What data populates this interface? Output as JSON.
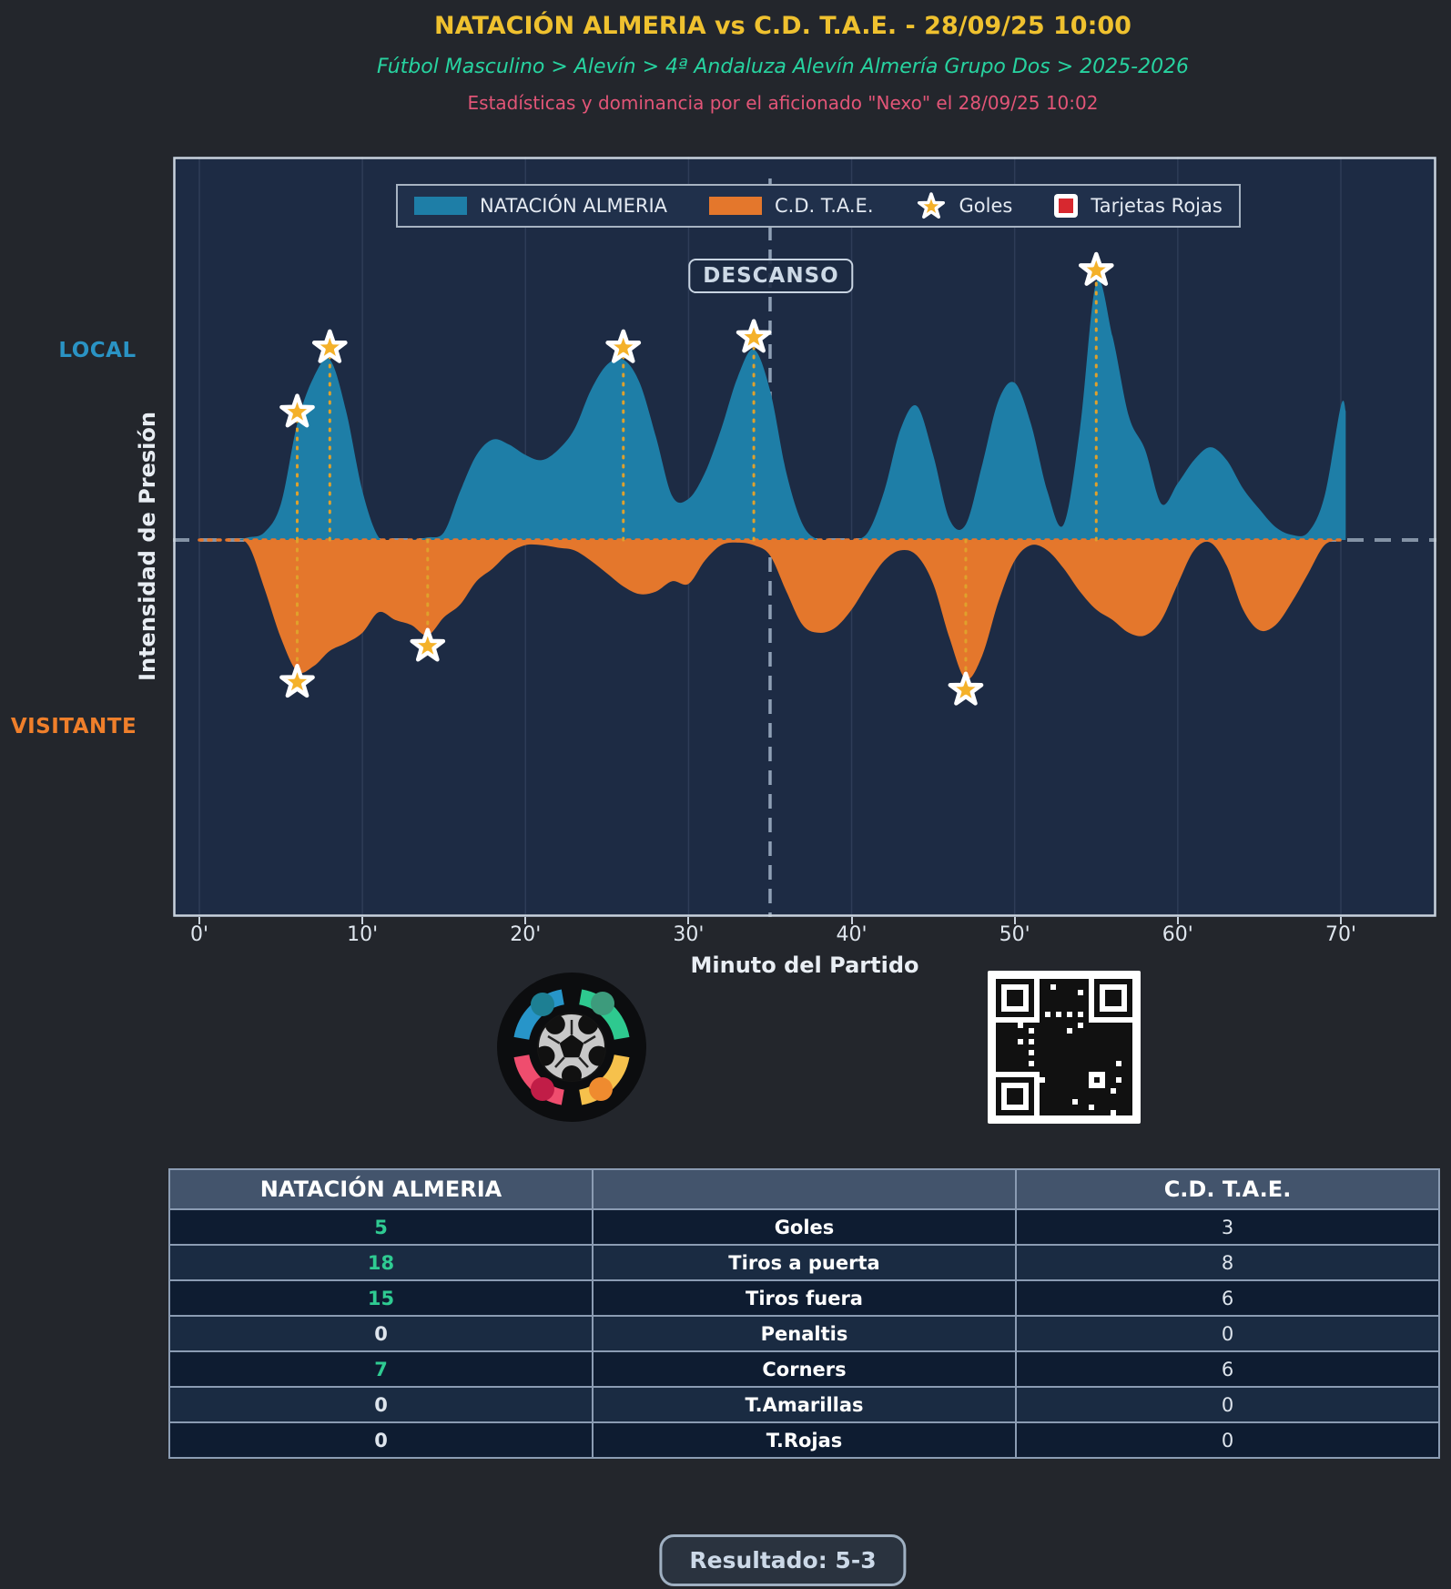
{
  "header": {
    "title": "NATACIÓN ALMERIA vs C.D. T.A.E. - 28/09/25 10:00",
    "breadcrumb": "Fútbol Masculino > Alevín > 4ª Andaluza Alevín Almería Grupo Dos > 2025-2026",
    "byline": "Estadísticas y dominancia por el aficionado \"Nexo\" el 28/09/25 10:02"
  },
  "colors": {
    "home_fill": "#1e7ea7",
    "away_fill": "#e4772c",
    "star_fill": "#f4b129",
    "goal_line": "#dfa12c",
    "baseline_gray": "#8493a6",
    "baseline_orange": "#e5762b",
    "halftime_line": "#8fa0b5",
    "grid": "rgba(170,193,228,0.12)",
    "frame": "#c9d2dc",
    "title_gold": "#efc12f",
    "breadcrumb_green": "#27d3a0",
    "byline_pink": "#e25577",
    "local_blue": "#2a93c4",
    "visitante_orange": "#ef7f2b",
    "value_green": "#2fcb92",
    "red_card": "#d7282f"
  },
  "chart_data": {
    "type": "area",
    "xlabel": "Minuto del Partido",
    "ylabel": "Intensidad de Presión",
    "units": "relative pressure intensity, 0-100 (home above baseline, away mirrored below)",
    "xlim_minutes": [
      -1.6,
      75.9
    ],
    "ylim_pct": [
      -146,
      149
    ],
    "grid": "vertical gridlines at 10-minute ticks",
    "legend_position": "top-center inside plot",
    "x_ticks": [
      {
        "m": 0,
        "label": "0'"
      },
      {
        "m": 10,
        "label": "10'"
      },
      {
        "m": 20,
        "label": "20'"
      },
      {
        "m": 30,
        "label": "30'"
      },
      {
        "m": 40,
        "label": "40'"
      },
      {
        "m": 50,
        "label": "50'"
      },
      {
        "m": 60,
        "label": "60'"
      },
      {
        "m": 70,
        "label": "70'"
      }
    ],
    "side_labels": {
      "local": "LOCAL",
      "visitante": "VISITANTE"
    },
    "halftime": {
      "minute": 35,
      "label": "DESCANSO"
    },
    "legend": [
      {
        "label": "NATACIÓN ALMERIA",
        "icon": "home-swatch"
      },
      {
        "label": "C.D. T.A.E.",
        "icon": "away-swatch"
      },
      {
        "label": "Goles",
        "icon": "goal-star"
      },
      {
        "label": "Tarjetas Rojas",
        "icon": "red-card"
      }
    ],
    "series": [
      {
        "name": "NATACIÓN ALMERIA",
        "side": "local",
        "points": [
          [
            0,
            0
          ],
          [
            2,
            0
          ],
          [
            3,
            1
          ],
          [
            4,
            3
          ],
          [
            5,
            14
          ],
          [
            6,
            45
          ],
          [
            7,
            63
          ],
          [
            8,
            70
          ],
          [
            9,
            50
          ],
          [
            10,
            19
          ],
          [
            11,
            1
          ],
          [
            12,
            0
          ],
          [
            13,
            0
          ],
          [
            14,
            1
          ],
          [
            15,
            3
          ],
          [
            16,
            19
          ],
          [
            17,
            33
          ],
          [
            18,
            39
          ],
          [
            19,
            37
          ],
          [
            20,
            33
          ],
          [
            21,
            31
          ],
          [
            22,
            35
          ],
          [
            23,
            43
          ],
          [
            24,
            58
          ],
          [
            25,
            68
          ],
          [
            26,
            70
          ],
          [
            27,
            61
          ],
          [
            28,
            40
          ],
          [
            29,
            17
          ],
          [
            30,
            16
          ],
          [
            31,
            26
          ],
          [
            32,
            43
          ],
          [
            33,
            63
          ],
          [
            34,
            74
          ],
          [
            35,
            58
          ],
          [
            36,
            26
          ],
          [
            37,
            6
          ],
          [
            38,
            0
          ],
          [
            39,
            0
          ],
          [
            40,
            0
          ],
          [
            41,
            3
          ],
          [
            42,
            19
          ],
          [
            43,
            43
          ],
          [
            44,
            52
          ],
          [
            45,
            33
          ],
          [
            46,
            8
          ],
          [
            47,
            6
          ],
          [
            48,
            29
          ],
          [
            49,
            54
          ],
          [
            50,
            61
          ],
          [
            51,
            45
          ],
          [
            52,
            19
          ],
          [
            53,
            6
          ],
          [
            54,
            43
          ],
          [
            55,
            100
          ],
          [
            56,
            79
          ],
          [
            57,
            48
          ],
          [
            58,
            35
          ],
          [
            59,
            14
          ],
          [
            60,
            22
          ],
          [
            61,
            31
          ],
          [
            62,
            36
          ],
          [
            63,
            31
          ],
          [
            64,
            20
          ],
          [
            65,
            12
          ],
          [
            66,
            5
          ],
          [
            67,
            2
          ],
          [
            68,
            3
          ],
          [
            69,
            17
          ],
          [
            70,
            52
          ],
          [
            70.3,
            50
          ]
        ]
      },
      {
        "name": "C.D. T.A.E.",
        "side": "visitante",
        "points": [
          [
            0,
            0
          ],
          [
            2,
            0
          ],
          [
            3,
            2
          ],
          [
            4,
            19
          ],
          [
            5,
            38
          ],
          [
            6,
            51
          ],
          [
            7,
            49
          ],
          [
            8,
            43
          ],
          [
            9,
            40
          ],
          [
            10,
            36
          ],
          [
            11,
            28
          ],
          [
            12,
            31
          ],
          [
            13,
            33
          ],
          [
            14,
            37
          ],
          [
            15,
            30
          ],
          [
            16,
            25
          ],
          [
            17,
            16
          ],
          [
            18,
            11
          ],
          [
            19,
            5
          ],
          [
            20,
            2
          ],
          [
            21,
            2
          ],
          [
            22,
            3
          ],
          [
            23,
            4
          ],
          [
            24,
            8
          ],
          [
            25,
            13
          ],
          [
            26,
            18
          ],
          [
            27,
            21
          ],
          [
            28,
            20
          ],
          [
            29,
            16
          ],
          [
            30,
            17
          ],
          [
            31,
            8
          ],
          [
            32,
            2
          ],
          [
            33,
            1
          ],
          [
            34,
            2
          ],
          [
            35,
            6
          ],
          [
            36,
            20
          ],
          [
            37,
            33
          ],
          [
            38,
            36
          ],
          [
            39,
            34
          ],
          [
            40,
            27
          ],
          [
            41,
            17
          ],
          [
            42,
            8
          ],
          [
            43,
            4
          ],
          [
            44,
            6
          ],
          [
            45,
            17
          ],
          [
            46,
            38
          ],
          [
            47,
            54
          ],
          [
            48,
            45
          ],
          [
            49,
            24
          ],
          [
            50,
            8
          ],
          [
            51,
            2
          ],
          [
            52,
            4
          ],
          [
            53,
            11
          ],
          [
            54,
            20
          ],
          [
            55,
            27
          ],
          [
            56,
            31
          ],
          [
            57,
            36
          ],
          [
            58,
            37
          ],
          [
            59,
            31
          ],
          [
            60,
            17
          ],
          [
            61,
            4
          ],
          [
            62,
            1
          ],
          [
            63,
            10
          ],
          [
            64,
            27
          ],
          [
            65,
            35
          ],
          [
            66,
            33
          ],
          [
            67,
            24
          ],
          [
            68,
            13
          ],
          [
            69,
            2
          ],
          [
            70,
            0
          ],
          [
            70.3,
            0
          ]
        ]
      }
    ],
    "goals": {
      "home_minutes": [
        6,
        8,
        26,
        34,
        55
      ],
      "away_minutes": [
        6,
        14,
        47
      ]
    }
  },
  "table": {
    "headers": {
      "home": "NATACIÓN ALMERIA",
      "stat": "",
      "away": "C.D. T.A.E."
    },
    "rows": [
      {
        "label": "Goles",
        "home": "5",
        "away": "3",
        "home_win": true
      },
      {
        "label": "Tiros a puerta",
        "home": "18",
        "away": "8",
        "home_win": true
      },
      {
        "label": "Tiros fuera",
        "home": "15",
        "away": "6",
        "home_win": true
      },
      {
        "label": "Penaltis",
        "home": "0",
        "away": "0",
        "home_win": false
      },
      {
        "label": "Corners",
        "home": "7",
        "away": "6",
        "home_win": true
      },
      {
        "label": "T.Amarillas",
        "home": "0",
        "away": "0",
        "home_win": false
      },
      {
        "label": "T.Rojas",
        "home": "0",
        "away": "0",
        "home_win": false
      }
    ]
  },
  "footer": {
    "result_label": "Resultado: 5-3"
  }
}
